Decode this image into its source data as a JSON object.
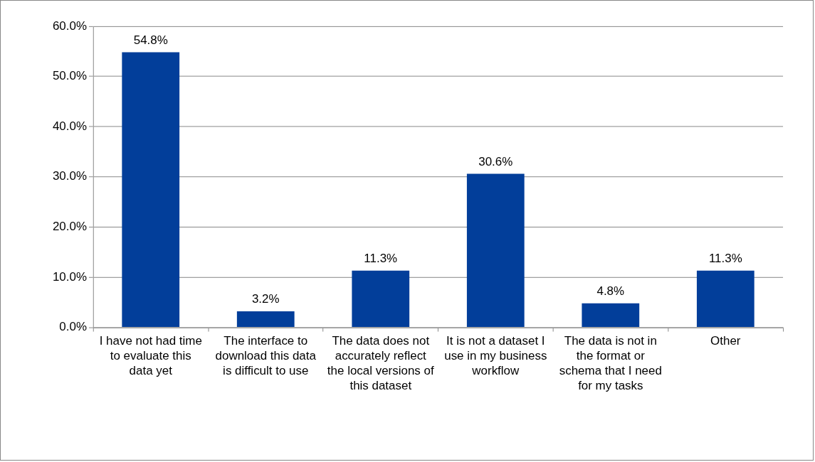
{
  "chart_data": {
    "type": "bar",
    "categories": [
      "I have not had time to evaluate this data yet",
      "The interface to download this data is difficult to use",
      "The data does not accurately reflect the local versions of this dataset",
      "It is not a dataset I use in my business workflow",
      "The data is not in the format or schema that I need for my tasks",
      "Other"
    ],
    "values": [
      54.8,
      3.2,
      11.3,
      30.6,
      4.8,
      11.3
    ],
    "value_labels": [
      "54.8%",
      "3.2%",
      "11.3%",
      "30.6%",
      "4.8%",
      "11.3%"
    ],
    "color": "#023e9a",
    "ylim": [
      0,
      60
    ],
    "yticks": [
      {
        "value": 0,
        "label": "0.0%"
      },
      {
        "value": 10,
        "label": "10.0%"
      },
      {
        "value": 20,
        "label": "20.0%"
      },
      {
        "value": 30,
        "label": "30.0%"
      },
      {
        "value": 40,
        "label": "40.0%"
      },
      {
        "value": 50,
        "label": "50.0%"
      },
      {
        "value": 60,
        "label": "60.0%"
      }
    ],
    "grid": "y",
    "legend": false
  }
}
